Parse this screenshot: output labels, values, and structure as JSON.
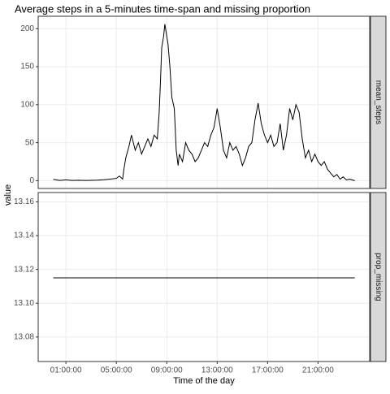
{
  "chart_data": [
    {
      "type": "line",
      "title": "Average steps in a 5-minutes time-span and missing proportion",
      "ylabel": "value",
      "facet": "mean_steps",
      "color": "#000000",
      "grid": true,
      "x": [
        0,
        0.5,
        1,
        1.5,
        2,
        2.5,
        3,
        3.5,
        4,
        4.5,
        5,
        5.25,
        5.5,
        5.6,
        5.75,
        6,
        6.2,
        6.5,
        6.75,
        7,
        7.25,
        7.5,
        7.75,
        8,
        8.25,
        8.4,
        8.5,
        8.6,
        8.75,
        8.85,
        9,
        9.1,
        9.25,
        9.4,
        9.6,
        9.75,
        9.9,
        10,
        10.25,
        10.5,
        10.75,
        11,
        11.25,
        11.5,
        11.75,
        12,
        12.25,
        12.5,
        12.75,
        13,
        13.25,
        13.5,
        13.75,
        14,
        14.25,
        14.5,
        14.75,
        15,
        15.25,
        15.5,
        15.75,
        16,
        16.25,
        16.5,
        16.75,
        17,
        17.25,
        17.5,
        17.75,
        18,
        18.25,
        18.5,
        18.75,
        19,
        19.25,
        19.5,
        19.75,
        20,
        20.25,
        20.5,
        20.75,
        21,
        21.25,
        21.5,
        21.75,
        22,
        22.25,
        22.5,
        22.75,
        23,
        23.25,
        23.5,
        23.92
      ],
      "values": [
        1.7,
        0.3,
        1,
        0.2,
        0.5,
        0.3,
        0.4,
        0.6,
        1.2,
        2,
        3,
        6,
        2,
        15,
        30,
        45,
        60,
        40,
        50,
        35,
        45,
        55,
        45,
        60,
        55,
        90,
        130,
        175,
        190,
        206,
        190,
        180,
        150,
        110,
        95,
        40,
        20,
        35,
        25,
        50,
        40,
        35,
        25,
        30,
        40,
        50,
        45,
        60,
        70,
        95,
        70,
        40,
        30,
        50,
        40,
        45,
        35,
        20,
        30,
        45,
        50,
        80,
        102,
        75,
        60,
        50,
        60,
        45,
        50,
        75,
        40,
        60,
        95,
        80,
        100,
        90,
        55,
        30,
        40,
        25,
        35,
        25,
        20,
        25,
        15,
        10,
        5,
        8,
        2,
        5,
        1,
        2,
        0
      ],
      "xlim": [
        -1.2,
        25.1
      ],
      "ylim": [
        -10.3,
        216.4
      ],
      "yticks": [
        0,
        50,
        100,
        150,
        200
      ]
    },
    {
      "type": "line",
      "facet": "prop_missing",
      "xlabel": "Time of the day",
      "color": "#000000",
      "grid": true,
      "x": [
        0,
        23.92
      ],
      "values": [
        13.115,
        13.115
      ],
      "xlim": [
        -1.2,
        25.1
      ],
      "ylim": [
        13.0655,
        13.1655
      ],
      "yticks": [
        {
          "value": 13.08,
          "label": "13.08"
        },
        {
          "value": 13.1,
          "label": "13.10"
        },
        {
          "value": 13.12,
          "label": "13.12"
        },
        {
          "value": 13.14,
          "label": "13.14"
        },
        {
          "value": 13.16,
          "label": "13.16"
        }
      ],
      "xticks": [
        {
          "value": 1,
          "label": "01:00:00"
        },
        {
          "value": 5,
          "label": "05:00:00"
        },
        {
          "value": 9,
          "label": "09:00:00"
        },
        {
          "value": 13,
          "label": "13:00:00"
        },
        {
          "value": 17,
          "label": "17:00:00"
        },
        {
          "value": 21,
          "label": "21:00:00"
        }
      ]
    }
  ]
}
